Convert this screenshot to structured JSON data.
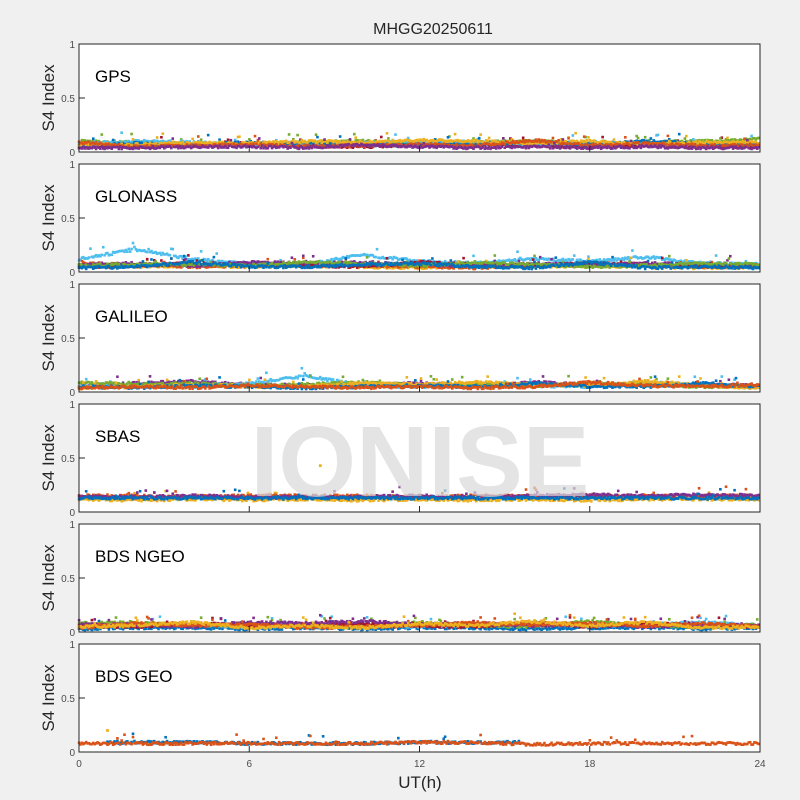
{
  "chart_data": {
    "type": "scatter",
    "title": "MHGG20250611",
    "xlabel": "UT(h)",
    "ylabel": "S4 Index",
    "xlim": [
      0,
      24
    ],
    "ylim": [
      0,
      1
    ],
    "xticks": [
      "0",
      "6",
      "12",
      "18",
      "24"
    ],
    "yticks": [
      "0",
      "0.5",
      "1"
    ],
    "watermark": "IONISE",
    "grid": false,
    "colors": [
      "#0072BD",
      "#D95319",
      "#EDB120",
      "#7E2F8E",
      "#77AC30",
      "#4DBEEE",
      "#A2142F"
    ],
    "x": [
      0,
      2,
      4,
      6,
      8,
      10,
      12,
      14,
      16,
      18,
      20,
      22,
      24
    ],
    "panels": [
      {
        "label": "GPS",
        "series": [
          {
            "color": "#A2142F",
            "y": [
              0.05,
              0.06,
              0.07,
              0.08,
              0.06,
              0.05,
              0.06,
              0.07,
              0.06,
              0.05,
              0.06,
              0.05,
              0.05
            ]
          },
          {
            "color": "#77AC30",
            "y": [
              0.1,
              0.09,
              0.08,
              0.07,
              0.09,
              0.1,
              0.08,
              0.09,
              0.1,
              0.08,
              0.09,
              0.1,
              0.12
            ]
          },
          {
            "color": "#4DBEEE",
            "y": [
              0.08,
              0.1,
              0.09,
              0.06,
              0.07,
              0.08,
              0.1,
              0.09,
              0.07,
              0.09,
              0.08,
              0.07,
              0.08
            ]
          },
          {
            "color": "#0072BD",
            "y": [
              0.06,
              0.08,
              0.07,
              0.09,
              0.08,
              0.07,
              0.06,
              0.08,
              0.09,
              0.07,
              0.1,
              0.08,
              0.07
            ]
          },
          {
            "color": "#EDB120",
            "y": [
              0.07,
              0.07,
              0.09,
              0.08,
              0.1,
              0.09,
              0.11,
              0.1,
              0.08,
              0.1,
              0.07,
              0.09,
              0.09
            ]
          },
          {
            "color": "#D95319",
            "y": [
              0.09,
              0.05,
              0.06,
              0.07,
              0.05,
              0.06,
              0.07,
              0.06,
              0.11,
              0.06,
              0.08,
              0.06,
              0.06
            ]
          },
          {
            "color": "#7E2F8E",
            "y": [
              0.04,
              0.04,
              0.05,
              0.05,
              0.04,
              0.07,
              0.05,
              0.04,
              0.05,
              0.04,
              0.05,
              0.04,
              0.04
            ]
          }
        ]
      },
      {
        "label": "GLONASS",
        "series": [
          {
            "color": "#4DBEEE",
            "y": [
              0.12,
              0.21,
              0.12,
              0.08,
              0.07,
              0.16,
              0.1,
              0.08,
              0.12,
              0.1,
              0.14,
              0.08,
              0.07
            ]
          },
          {
            "color": "#EDB120",
            "y": [
              0.06,
              0.05,
              0.06,
              0.05,
              0.06,
              0.05,
              0.04,
              0.06,
              0.05,
              0.06,
              0.05,
              0.04,
              0.05
            ]
          },
          {
            "color": "#D95319",
            "y": [
              0.08,
              0.07,
              0.05,
              0.06,
              0.07,
              0.06,
              0.05,
              0.04,
              0.06,
              0.07,
              0.06,
              0.05,
              0.06
            ]
          },
          {
            "color": "#A2142F",
            "y": [
              0.05,
              0.06,
              0.08,
              0.07,
              0.06,
              0.05,
              0.09,
              0.07,
              0.06,
              0.08,
              0.07,
              0.06,
              0.05
            ]
          },
          {
            "color": "#7E2F8E",
            "y": [
              0.07,
              0.08,
              0.06,
              0.09,
              0.08,
              0.09,
              0.07,
              0.06,
              0.08,
              0.06,
              0.08,
              0.07,
              0.06
            ]
          },
          {
            "color": "#77AC30",
            "y": [
              0.06,
              0.07,
              0.07,
              0.06,
              0.09,
              0.08,
              0.06,
              0.09,
              0.07,
              0.05,
              0.06,
              0.08,
              0.07
            ]
          },
          {
            "color": "#0072BD",
            "y": [
              0.04,
              0.05,
              0.09,
              0.05,
              0.05,
              0.07,
              0.08,
              0.05,
              0.04,
              0.09,
              0.04,
              0.05,
              0.04
            ]
          }
        ]
      },
      {
        "label": "GALILEO",
        "series": [
          {
            "color": "#7E2F8E",
            "y": [
              0.06,
              0.08,
              0.1,
              0.07,
              0.06,
              0.07,
              0.08,
              0.06,
              0.09,
              0.07,
              0.06,
              0.07,
              0.06
            ]
          },
          {
            "color": "#4DBEEE",
            "y": [
              0.05,
              0.06,
              0.05,
              0.08,
              0.15,
              0.06,
              0.05,
              0.07,
              0.06,
              0.05,
              0.09,
              0.06,
              0.05
            ]
          },
          {
            "color": "#77AC30",
            "y": [
              0.09,
              0.07,
              0.08,
              0.06,
              0.07,
              0.09,
              0.06,
              0.08,
              0.05,
              0.08,
              0.07,
              0.05,
              0.06
            ]
          },
          {
            "color": "#EDB120",
            "y": [
              0.04,
              0.05,
              0.07,
              0.05,
              0.05,
              0.08,
              0.07,
              0.09,
              0.07,
              0.06,
              0.1,
              0.06,
              0.04
            ]
          },
          {
            "color": "#0072BD",
            "y": [
              0.05,
              0.04,
              0.06,
              0.05,
              0.04,
              0.05,
              0.06,
              0.05,
              0.08,
              0.05,
              0.05,
              0.08,
              0.05
            ]
          },
          {
            "color": "#D95319",
            "y": [
              0.04,
              0.05,
              0.04,
              0.06,
              0.05,
              0.04,
              0.05,
              0.04,
              0.05,
              0.09,
              0.06,
              0.05,
              0.07
            ]
          }
        ]
      },
      {
        "label": "SBAS",
        "outlier": {
          "x": 8.5,
          "y": 0.43
        },
        "series": [
          {
            "color": "#EDB120",
            "y": [
              0.12,
              0.11,
              0.12,
              0.11,
              0.12,
              0.11,
              0.12,
              0.11,
              0.12,
              0.11,
              0.12,
              0.12,
              0.12
            ]
          },
          {
            "color": "#D95319",
            "y": [
              0.15,
              0.15,
              0.14,
              0.15,
              0.15,
              0.15,
              0.14,
              0.15,
              0.15,
              0.15,
              0.15,
              0.15,
              0.15
            ]
          },
          {
            "color": "#7E2F8E",
            "y": [
              0.14,
              0.14,
              0.15,
              0.14,
              0.14,
              0.14,
              0.15,
              0.14,
              0.15,
              0.16,
              0.15,
              0.16,
              0.15
            ]
          },
          {
            "color": "#0072BD",
            "y": [
              0.13,
              0.13,
              0.13,
              0.13,
              0.13,
              0.13,
              0.13,
              0.13,
              0.13,
              0.13,
              0.13,
              0.13,
              0.13
            ]
          }
        ]
      },
      {
        "label": "BDS NGEO",
        "series": [
          {
            "color": "#0072BD",
            "y": [
              0.03,
              0.04,
              0.04,
              0.03,
              0.04,
              0.03,
              0.04,
              0.04,
              0.03,
              0.04,
              0.04,
              0.03,
              0.04
            ]
          },
          {
            "color": "#4DBEEE",
            "y": [
              0.05,
              0.06,
              0.07,
              0.05,
              0.06,
              0.07,
              0.05,
              0.07,
              0.08,
              0.06,
              0.07,
              0.09,
              0.06
            ]
          },
          {
            "color": "#77AC30",
            "y": [
              0.08,
              0.09,
              0.06,
              0.08,
              0.05,
              0.06,
              0.09,
              0.06,
              0.05,
              0.1,
              0.06,
              0.05,
              0.07
            ]
          },
          {
            "color": "#A2142F",
            "y": [
              0.06,
              0.05,
              0.08,
              0.06,
              0.07,
              0.08,
              0.06,
              0.05,
              0.09,
              0.05,
              0.08,
              0.06,
              0.05
            ]
          },
          {
            "color": "#7E2F8E",
            "y": [
              0.07,
              0.07,
              0.05,
              0.09,
              0.08,
              0.1,
              0.07,
              0.08,
              0.06,
              0.07,
              0.05,
              0.07,
              0.06
            ]
          },
          {
            "color": "#D95319",
            "y": [
              0.04,
              0.08,
              0.06,
              0.07,
              0.04,
              0.05,
              0.06,
              0.09,
              0.07,
              0.08,
              0.06,
              0.08,
              0.05
            ]
          },
          {
            "color": "#EDB120",
            "y": [
              0.05,
              0.06,
              0.09,
              0.04,
              0.06,
              0.04,
              0.08,
              0.06,
              0.1,
              0.06,
              0.09,
              0.04,
              0.05
            ]
          }
        ]
      },
      {
        "label": "BDS GEO",
        "outlier": {
          "x": 1.0,
          "y": 0.2
        },
        "series": [
          {
            "color": "#0072BD",
            "y": [
              null,
              0.09,
              0.09,
              0.08,
              0.08,
              0.08,
              0.09,
              0.09,
              null,
              null,
              null,
              null,
              null
            ],
            "xend": 15.5
          },
          {
            "color": "#D95319",
            "y": [
              0.08,
              0.08,
              0.08,
              0.08,
              0.08,
              0.08,
              0.09,
              0.09,
              0.07,
              0.08,
              0.08,
              0.08,
              0.08
            ]
          }
        ]
      }
    ]
  }
}
